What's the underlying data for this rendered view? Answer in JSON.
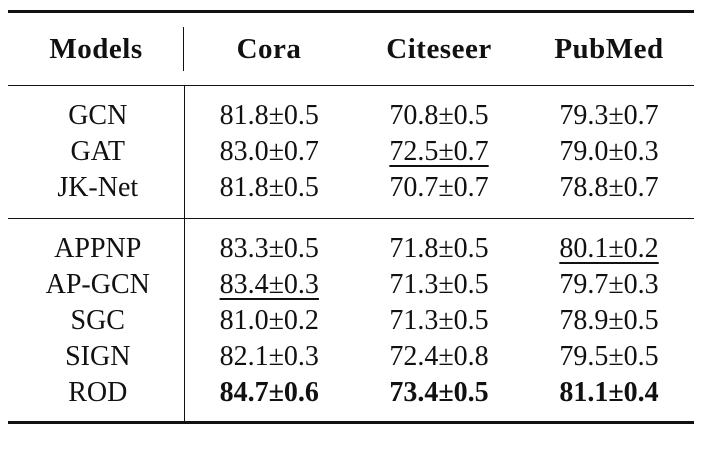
{
  "table": {
    "headers": [
      "Models",
      "Cora",
      "Citeseer",
      "PubMed"
    ],
    "group1": [
      {
        "model": "GCN",
        "cora": "81.8±0.5",
        "citeseer": "70.8±0.5",
        "pubmed": "79.3±0.7"
      },
      {
        "model": "GAT",
        "cora": "83.0±0.7",
        "citeseer": "72.5±0.7",
        "pubmed": "79.0±0.3"
      },
      {
        "model": "JK-Net",
        "cora": "81.8±0.5",
        "citeseer": "70.7±0.7",
        "pubmed": "78.8±0.7"
      }
    ],
    "group2": [
      {
        "model": "APPNP",
        "cora": "83.3±0.5",
        "citeseer": "71.8±0.5",
        "pubmed": "80.1±0.2"
      },
      {
        "model": "AP-GCN",
        "cora": "83.4±0.3",
        "citeseer": "71.3±0.5",
        "pubmed": "79.7±0.3"
      },
      {
        "model": "SGC",
        "cora": "81.0±0.2",
        "citeseer": "71.3±0.5",
        "pubmed": "78.9±0.5"
      },
      {
        "model": "SIGN",
        "cora": "82.1±0.3",
        "citeseer": "72.4±0.8",
        "pubmed": "79.5±0.5"
      },
      {
        "model": "ROD",
        "cora": "84.7±0.6",
        "citeseer": "73.4±0.5",
        "pubmed": "81.1±0.4"
      }
    ]
  }
}
